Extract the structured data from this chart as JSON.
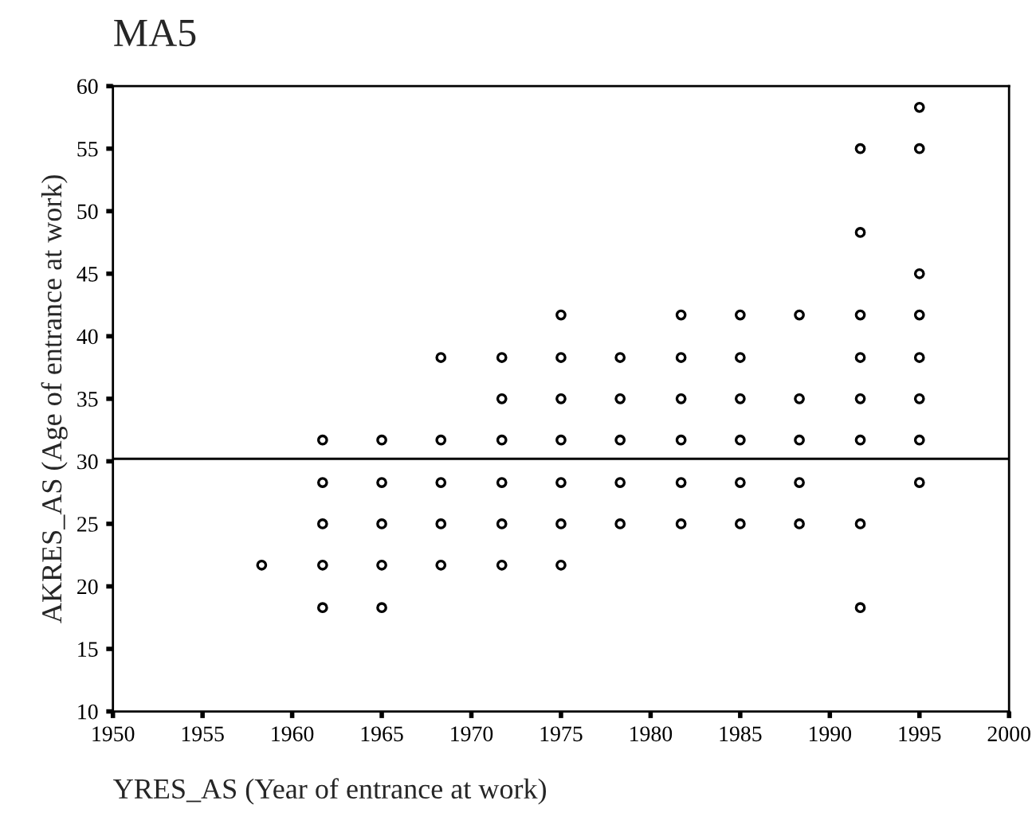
{
  "chart_data": {
    "type": "scatter",
    "title": "MA5",
    "xlabel": "YRES_AS (Year of entrance at work)",
    "ylabel": "AKRES_AS (Age of entrance at work)",
    "x": [
      1958.3,
      1961.7,
      1961.7,
      1961.7,
      1961.7,
      1961.7,
      1965,
      1965,
      1965,
      1965,
      1965,
      1968.3,
      1968.3,
      1968.3,
      1968.3,
      1968.3,
      1971.7,
      1971.7,
      1971.7,
      1971.7,
      1971.7,
      1971.7,
      1975,
      1975,
      1975,
      1975,
      1975,
      1975,
      1975,
      1978.3,
      1978.3,
      1978.3,
      1978.3,
      1978.3,
      1981.7,
      1981.7,
      1981.7,
      1981.7,
      1981.7,
      1981.7,
      1985,
      1985,
      1985,
      1985,
      1985,
      1985,
      1988.3,
      1988.3,
      1988.3,
      1988.3,
      1988.3,
      1991.7,
      1991.7,
      1991.7,
      1991.7,
      1991.7,
      1991.7,
      1991.7,
      1991.7,
      1995,
      1995,
      1995,
      1995,
      1995,
      1995,
      1995,
      1995
    ],
    "values": [
      21.7,
      31.7,
      28.3,
      25,
      21.7,
      18.3,
      31.7,
      28.3,
      25,
      21.7,
      18.3,
      38.3,
      31.7,
      28.3,
      25,
      21.7,
      38.3,
      35,
      31.7,
      28.3,
      25,
      21.7,
      41.7,
      38.3,
      35,
      31.7,
      28.3,
      25,
      21.7,
      38.3,
      35,
      31.7,
      28.3,
      25,
      41.7,
      38.3,
      35,
      31.7,
      28.3,
      25,
      41.7,
      38.3,
      35,
      31.7,
      28.3,
      25,
      41.7,
      35,
      31.7,
      28.3,
      25,
      55,
      48.3,
      41.7,
      38.3,
      35,
      31.7,
      25,
      18.3,
      58.3,
      55,
      45,
      41.7,
      38.3,
      35,
      31.7,
      28.3
    ],
    "color": "#000000",
    "marker": "circle",
    "xlim": [
      1950,
      2000
    ],
    "xticks": [
      1950,
      1955,
      1960,
      1965,
      1970,
      1975,
      1980,
      1985,
      1990,
      1995,
      2000
    ],
    "ylim": [
      10,
      60
    ],
    "yticks": [
      10,
      15,
      20,
      25,
      30,
      35,
      40,
      45,
      50,
      55,
      60
    ],
    "ref_lines": [
      {
        "axis": "y",
        "value": 30.2,
        "color": "#000000"
      }
    ],
    "grid": false,
    "legend": false
  }
}
